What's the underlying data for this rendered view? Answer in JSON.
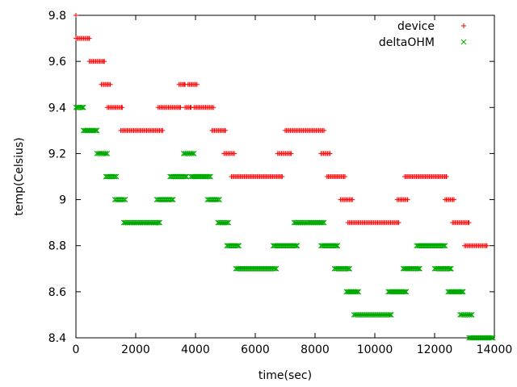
{
  "chart_data": {
    "type": "scatter",
    "title": "",
    "xlabel": "time(sec)",
    "ylabel": "temp(Celsius)",
    "xlim": [
      0,
      14000
    ],
    "ylim": [
      8.4,
      9.8
    ],
    "xticks": [
      0,
      2000,
      4000,
      6000,
      8000,
      10000,
      12000,
      14000
    ],
    "yticks": [
      8.4,
      8.6,
      8.8,
      9.0,
      9.2,
      9.4,
      9.6,
      9.8
    ],
    "xtick_labels": [
      "0",
      "2000",
      "4000",
      "6000",
      "8000",
      "10000",
      "12000",
      "14000"
    ],
    "ytick_labels": [
      "8.4",
      "8.6",
      "8.8",
      "9",
      "9.2",
      "9.4",
      "9.6",
      "9.8"
    ],
    "grid": false,
    "legend_position": "top-right",
    "series": [
      {
        "name": "device",
        "color": "#ff0000",
        "marker": "plus",
        "segments": [
          {
            "x0": 0,
            "x1": 0,
            "y": 9.8
          },
          {
            "x0": 0,
            "x1": 450,
            "y": 9.7
          },
          {
            "x0": 450,
            "x1": 950,
            "y": 9.6
          },
          {
            "x0": 850,
            "x1": 1150,
            "y": 9.5
          },
          {
            "x0": 1050,
            "x1": 1550,
            "y": 9.4
          },
          {
            "x0": 1500,
            "x1": 2900,
            "y": 9.3
          },
          {
            "x0": 2750,
            "x1": 3500,
            "y": 9.4
          },
          {
            "x0": 3450,
            "x1": 3650,
            "y": 9.5
          },
          {
            "x0": 3650,
            "x1": 3850,
            "y": 9.4
          },
          {
            "x0": 3750,
            "x1": 4050,
            "y": 9.5
          },
          {
            "x0": 3950,
            "x1": 4600,
            "y": 9.4
          },
          {
            "x0": 4550,
            "x1": 5000,
            "y": 9.3
          },
          {
            "x0": 4950,
            "x1": 5300,
            "y": 9.2
          },
          {
            "x0": 5200,
            "x1": 6900,
            "y": 9.1
          },
          {
            "x0": 6750,
            "x1": 7200,
            "y": 9.2
          },
          {
            "x0": 7000,
            "x1": 8300,
            "y": 9.3
          },
          {
            "x0": 8200,
            "x1": 8500,
            "y": 9.2
          },
          {
            "x0": 8400,
            "x1": 9000,
            "y": 9.1
          },
          {
            "x0": 8850,
            "x1": 9250,
            "y": 9.0
          },
          {
            "x0": 9100,
            "x1": 10800,
            "y": 8.9
          },
          {
            "x0": 10750,
            "x1": 11100,
            "y": 9.0
          },
          {
            "x0": 11000,
            "x1": 12400,
            "y": 9.1
          },
          {
            "x0": 12350,
            "x1": 12650,
            "y": 9.0
          },
          {
            "x0": 12600,
            "x1": 13150,
            "y": 8.9
          },
          {
            "x0": 13000,
            "x1": 13750,
            "y": 8.8
          }
        ]
      },
      {
        "name": "deltaOHM",
        "color": "#00aa00",
        "marker": "cross",
        "segments": [
          {
            "x0": 0,
            "x1": 250,
            "y": 9.4
          },
          {
            "x0": 250,
            "x1": 700,
            "y": 9.3
          },
          {
            "x0": 700,
            "x1": 1050,
            "y": 9.2
          },
          {
            "x0": 1000,
            "x1": 1350,
            "y": 9.1
          },
          {
            "x0": 1300,
            "x1": 1650,
            "y": 9.0
          },
          {
            "x0": 1600,
            "x1": 2800,
            "y": 8.9
          },
          {
            "x0": 2700,
            "x1": 3250,
            "y": 9.0
          },
          {
            "x0": 3150,
            "x1": 3700,
            "y": 9.1
          },
          {
            "x0": 3600,
            "x1": 3950,
            "y": 9.2
          },
          {
            "x0": 3850,
            "x1": 4500,
            "y": 9.1
          },
          {
            "x0": 4400,
            "x1": 4800,
            "y": 9.0
          },
          {
            "x0": 4750,
            "x1": 5100,
            "y": 8.9
          },
          {
            "x0": 5050,
            "x1": 5450,
            "y": 8.8
          },
          {
            "x0": 5350,
            "x1": 6700,
            "y": 8.7
          },
          {
            "x0": 6600,
            "x1": 7400,
            "y": 8.8
          },
          {
            "x0": 7300,
            "x1": 8300,
            "y": 8.9
          },
          {
            "x0": 8200,
            "x1": 8750,
            "y": 8.8
          },
          {
            "x0": 8650,
            "x1": 9150,
            "y": 8.7
          },
          {
            "x0": 9050,
            "x1": 9450,
            "y": 8.6
          },
          {
            "x0": 9300,
            "x1": 10550,
            "y": 8.5
          },
          {
            "x0": 10450,
            "x1": 11050,
            "y": 8.6
          },
          {
            "x0": 10950,
            "x1": 11500,
            "y": 8.7
          },
          {
            "x0": 11400,
            "x1": 12350,
            "y": 8.8
          },
          {
            "x0": 12000,
            "x1": 12550,
            "y": 8.7
          },
          {
            "x0": 12450,
            "x1": 12950,
            "y": 8.6
          },
          {
            "x0": 12850,
            "x1": 13250,
            "y": 8.5
          },
          {
            "x0": 13150,
            "x1": 13950,
            "y": 8.4
          }
        ]
      }
    ]
  }
}
